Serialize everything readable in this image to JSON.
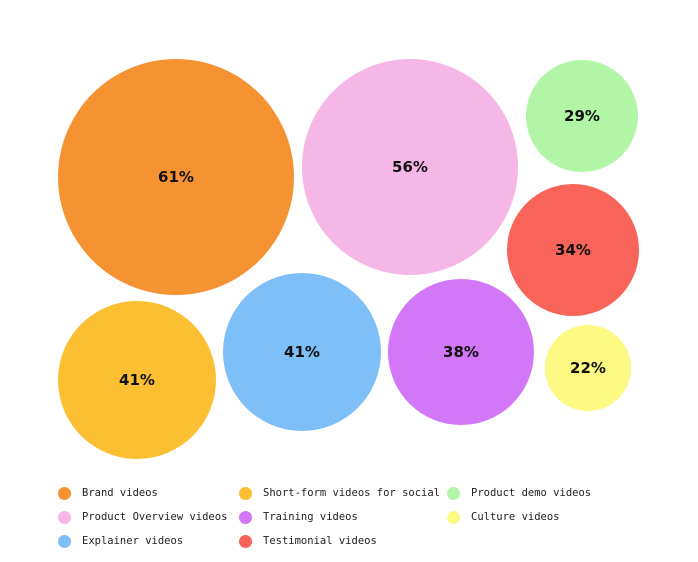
{
  "chart_data": {
    "type": "bubble",
    "title": "",
    "series": [
      {
        "name": "Brand videos",
        "value": 61,
        "label": "61%",
        "color": "#f59232"
      },
      {
        "name": "Product Overview videos",
        "value": 56,
        "label": "56%",
        "color": "#f5b8e6"
      },
      {
        "name": "Product demo videos",
        "value": 29,
        "label": "29%",
        "color": "#b3f5a7"
      },
      {
        "name": "Testimonial videos",
        "value": 34,
        "label": "34%",
        "color": "#f86459"
      },
      {
        "name": "Short-form videos for social",
        "value": 41,
        "label": "41%",
        "color": "#fbbf31"
      },
      {
        "name": "Explainer videos",
        "value": 41,
        "label": "41%",
        "color": "#7fbff8"
      },
      {
        "name": "Training videos",
        "value": 38,
        "label": "38%",
        "color": "#d177f8"
      },
      {
        "name": "Culture videos",
        "value": 22,
        "label": "22%",
        "color": "#fcfa82"
      }
    ],
    "legend_placement": "bottom",
    "legend_order": [
      "Brand videos",
      "Short-form videos for social",
      "Product demo videos",
      "Product Overview videos",
      "Training videos",
      "Culture videos",
      "Explainer videos",
      "Testimonial videos"
    ]
  }
}
